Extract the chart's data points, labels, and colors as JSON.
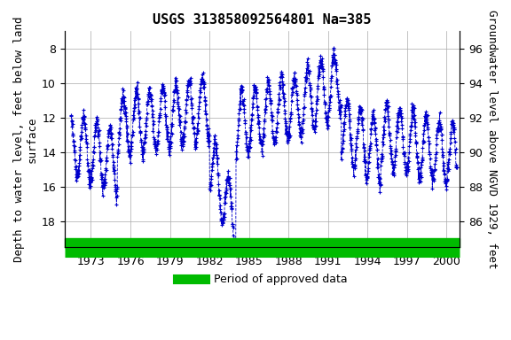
{
  "title": "USGS 313858092564801 Na=385",
  "xlabel_left": "Depth to water level, feet below land\nsurface",
  "ylabel_right": "Groundwater level above NGVD 1929, feet",
  "legend_label": "Period of approved data",
  "legend_color": "#00bb00",
  "left_ylim": [
    19.5,
    7.0
  ],
  "right_ylim": [
    84.5,
    97.5
  ],
  "left_yticks": [
    8,
    10,
    12,
    14,
    16,
    18
  ],
  "right_yticks": [
    86,
    88,
    90,
    92,
    94,
    96
  ],
  "xticks": [
    1973,
    1976,
    1979,
    1982,
    1985,
    1988,
    1991,
    1994,
    1997,
    2000
  ],
  "xlim": [
    1971.0,
    2001.0
  ],
  "data_color": "#0000cc",
  "background_color": "#ffffff",
  "grid_color": "#aaaaaa",
  "title_fontsize": 11,
  "axis_label_fontsize": 9,
  "tick_fontsize": 9
}
